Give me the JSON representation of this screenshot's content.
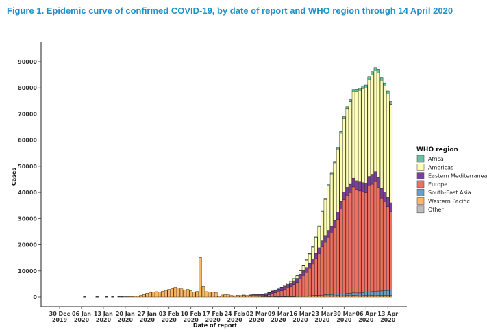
{
  "figure": {
    "title": "Figure 1. Epidemic curve of confirmed COVID-19, by date of report and WHO region through 14 April 2020"
  },
  "chart_data": {
    "type": "bar",
    "stacked": true,
    "xlabel": "Date of report",
    "ylabel": "Cases",
    "ylim": [
      0,
      95000
    ],
    "yticks": [
      0,
      10000,
      20000,
      30000,
      40000,
      50000,
      60000,
      70000,
      80000,
      90000
    ],
    "xticks": [
      {
        "line1": "30 Dec",
        "line2": "2019",
        "day": 0
      },
      {
        "line1": "06 Jan",
        "line2": "2020",
        "day": 7
      },
      {
        "line1": "13 Jan",
        "line2": "2020",
        "day": 14
      },
      {
        "line1": "20 Jan",
        "line2": "2020",
        "day": 21
      },
      {
        "line1": "27 Jan",
        "line2": "2020",
        "day": 28
      },
      {
        "line1": "03 Feb",
        "line2": "2020",
        "day": 35
      },
      {
        "line1": "10 Feb",
        "line2": "2020",
        "day": 42
      },
      {
        "line1": "17 Feb",
        "line2": "2020",
        "day": 49
      },
      {
        "line1": "24 Feb",
        "line2": "2020",
        "day": 56
      },
      {
        "line1": "02 Mar",
        "line2": "2020",
        "day": 63
      },
      {
        "line1": "09 Mar",
        "line2": "2020",
        "day": 70
      },
      {
        "line1": "16 Mar",
        "line2": "2020",
        "day": 77
      },
      {
        "line1": "23 Mar",
        "line2": "2020",
        "day": 84
      },
      {
        "line1": "30 Mar",
        "line2": "2020",
        "day": 91
      },
      {
        "line1": "06 Apr",
        "line2": "2020",
        "day": 98
      },
      {
        "line1": "13 Apr",
        "line2": "2020",
        "day": 105
      }
    ],
    "x_start_date": "2019-12-30",
    "legend": {
      "title": "WHO region",
      "position": "right",
      "entries": [
        {
          "name": "Africa",
          "color": "#66c2a5"
        },
        {
          "name": "Americas",
          "color": "#ffffb3"
        },
        {
          "name": "Eastern Mediterranean",
          "color": "#7b3f99"
        },
        {
          "name": "Europe",
          "color": "#f0705f"
        },
        {
          "name": "South-East Asia",
          "color": "#6aa0c8"
        },
        {
          "name": "Western Pacific",
          "color": "#fdb863"
        },
        {
          "name": "Other",
          "color": "#bdbdbd"
        }
      ]
    },
    "region_order": [
      "Western Pacific",
      "South-East Asia",
      "Europe",
      "Eastern Mediterranean",
      "Americas",
      "Africa",
      "Other"
    ],
    "dates": [
      "2020-01-07",
      "2020-01-08",
      "2020-01-09",
      "2020-01-10",
      "2020-01-11",
      "2020-01-12",
      "2020-01-13",
      "2020-01-14",
      "2020-01-15",
      "2020-01-16",
      "2020-01-17",
      "2020-01-18",
      "2020-01-19",
      "2020-01-20",
      "2020-01-21",
      "2020-01-22",
      "2020-01-23",
      "2020-01-24",
      "2020-01-25",
      "2020-01-26",
      "2020-01-27",
      "2020-01-28",
      "2020-01-29",
      "2020-01-30",
      "2020-01-31",
      "2020-02-01",
      "2020-02-02",
      "2020-02-03",
      "2020-02-04",
      "2020-02-05",
      "2020-02-06",
      "2020-02-07",
      "2020-02-08",
      "2020-02-09",
      "2020-02-10",
      "2020-02-11",
      "2020-02-12",
      "2020-02-13",
      "2020-02-14",
      "2020-02-15",
      "2020-02-16",
      "2020-02-17",
      "2020-02-18",
      "2020-02-19",
      "2020-02-20",
      "2020-02-21",
      "2020-02-22",
      "2020-02-23",
      "2020-02-24",
      "2020-02-25",
      "2020-02-26",
      "2020-02-27",
      "2020-02-28",
      "2020-02-29",
      "2020-03-01",
      "2020-03-02",
      "2020-03-03",
      "2020-03-04",
      "2020-03-05",
      "2020-03-06",
      "2020-03-07",
      "2020-03-08",
      "2020-03-09",
      "2020-03-10",
      "2020-03-11",
      "2020-03-12",
      "2020-03-13",
      "2020-03-14",
      "2020-03-15",
      "2020-03-16",
      "2020-03-17",
      "2020-03-18",
      "2020-03-19",
      "2020-03-20",
      "2020-03-21",
      "2020-03-22",
      "2020-03-23",
      "2020-03-24",
      "2020-03-25",
      "2020-03-26",
      "2020-03-27",
      "2020-03-28",
      "2020-03-29",
      "2020-03-30",
      "2020-03-31",
      "2020-04-01",
      "2020-04-02",
      "2020-04-03",
      "2020-04-04",
      "2020-04-05",
      "2020-04-06",
      "2020-04-07",
      "2020-04-08",
      "2020-04-09",
      "2020-04-10",
      "2020-04-11",
      "2020-04-12",
      "2020-04-13",
      "2020-04-14"
    ],
    "series": [
      {
        "name": "Western Pacific",
        "values": [
          50,
          0,
          0,
          0,
          50,
          0,
          0,
          50,
          0,
          50,
          0,
          100,
          80,
          140,
          150,
          250,
          300,
          450,
          700,
          1000,
          1500,
          1800,
          2000,
          2100,
          2000,
          2300,
          2600,
          3000,
          3300,
          3800,
          3600,
          3200,
          2800,
          3000,
          2500,
          2000,
          2200,
          15100,
          4100,
          2100,
          2000,
          2000,
          1800,
          400,
          800,
          1000,
          900,
          600,
          500,
          700,
          500,
          700,
          450,
          550,
          750,
          300,
          300,
          200,
          200,
          150,
          300,
          200,
          100,
          200,
          150,
          200,
          200,
          200,
          300,
          300,
          300,
          300,
          350,
          400,
          400,
          350,
          350,
          500,
          500,
          450,
          500,
          550,
          450,
          500,
          600,
          550,
          650,
          600,
          500,
          550,
          600,
          550,
          650,
          550,
          650,
          600,
          650,
          600,
          600
        ]
      },
      {
        "name": "South-East Asia",
        "values": [
          0,
          0,
          0,
          0,
          0,
          0,
          0,
          0,
          0,
          0,
          0,
          0,
          0,
          0,
          0,
          0,
          0,
          0,
          0,
          0,
          0,
          0,
          0,
          0,
          0,
          0,
          0,
          0,
          0,
          0,
          0,
          0,
          0,
          0,
          0,
          0,
          0,
          0,
          0,
          0,
          0,
          0,
          0,
          0,
          0,
          0,
          0,
          0,
          0,
          0,
          0,
          0,
          0,
          0,
          0,
          0,
          0,
          0,
          0,
          0,
          20,
          20,
          30,
          30,
          40,
          50,
          50,
          60,
          80,
          100,
          100,
          100,
          150,
          200,
          250,
          300,
          400,
          450,
          500,
          550,
          600,
          650,
          700,
          700,
          800,
          900,
          1000,
          1000,
          1100,
          1200,
          1300,
          1400,
          1500,
          1600,
          1700,
          1800,
          1900,
          2000,
          2100
        ]
      },
      {
        "name": "Europe",
        "values": [
          0,
          0,
          0,
          0,
          0,
          0,
          0,
          0,
          0,
          0,
          0,
          0,
          0,
          0,
          0,
          0,
          0,
          0,
          0,
          0,
          0,
          0,
          0,
          0,
          0,
          0,
          0,
          0,
          0,
          0,
          0,
          0,
          0,
          0,
          0,
          0,
          0,
          0,
          0,
          0,
          0,
          0,
          0,
          0,
          0,
          0,
          0,
          0,
          0,
          0,
          0,
          0,
          0,
          0,
          50,
          100,
          150,
          200,
          400,
          700,
          1000,
          1400,
          1800,
          2200,
          2700,
          3300,
          3800,
          4500,
          5200,
          6500,
          7900,
          9000,
          10500,
          12000,
          14000,
          16000,
          18500,
          20000,
          22000,
          23500,
          25500,
          28500,
          32500,
          36000,
          37500,
          38500,
          40500,
          39500,
          39000,
          38500,
          38000,
          40500,
          41000,
          42000,
          39500,
          35500,
          34000,
          32000,
          30000
        ]
      },
      {
        "name": "Eastern Mediterranean",
        "values": [
          0,
          0,
          0,
          0,
          0,
          0,
          0,
          0,
          0,
          0,
          0,
          0,
          0,
          0,
          0,
          0,
          0,
          0,
          0,
          0,
          0,
          0,
          0,
          0,
          0,
          0,
          0,
          0,
          0,
          0,
          0,
          0,
          0,
          0,
          0,
          0,
          0,
          0,
          0,
          0,
          0,
          0,
          0,
          0,
          0,
          0,
          0,
          0,
          0,
          0,
          50,
          100,
          150,
          300,
          400,
          500,
          600,
          600,
          700,
          800,
          900,
          1000,
          1000,
          1100,
          1200,
          1300,
          1400,
          1500,
          1600,
          1700,
          1800,
          1900,
          2000,
          2000,
          2100,
          2200,
          2300,
          2400,
          2500,
          2600,
          2700,
          2800,
          2900,
          3000,
          3100,
          3200,
          3300,
          3400,
          3400,
          3500,
          3600,
          3700,
          3800,
          3800,
          3900,
          3700,
          3600,
          3500,
          3400
        ]
      },
      {
        "name": "Americas",
        "values": [
          0,
          0,
          0,
          0,
          0,
          0,
          0,
          0,
          0,
          0,
          0,
          0,
          0,
          0,
          0,
          0,
          0,
          0,
          0,
          0,
          0,
          0,
          0,
          0,
          0,
          0,
          0,
          0,
          0,
          0,
          0,
          0,
          0,
          0,
          0,
          0,
          0,
          0,
          0,
          0,
          0,
          0,
          0,
          0,
          0,
          0,
          0,
          0,
          0,
          0,
          0,
          0,
          0,
          0,
          10,
          20,
          30,
          50,
          80,
          100,
          150,
          200,
          250,
          300,
          400,
          500,
          600,
          800,
          1000,
          1500,
          2000,
          2800,
          3500,
          4500,
          6000,
          8000,
          11000,
          14000,
          17000,
          20000,
          22000,
          24000,
          26000,
          28000,
          30000,
          31500,
          33000,
          34000,
          35000,
          36000,
          36500,
          37000,
          38000,
          38500,
          40000,
          41000,
          40500,
          39500,
          37500
        ]
      },
      {
        "name": "Africa",
        "values": [
          0,
          0,
          0,
          0,
          0,
          0,
          0,
          0,
          0,
          0,
          0,
          0,
          0,
          0,
          0,
          0,
          0,
          0,
          0,
          0,
          0,
          0,
          0,
          0,
          0,
          0,
          0,
          0,
          0,
          0,
          0,
          0,
          0,
          0,
          0,
          0,
          0,
          0,
          0,
          0,
          0,
          0,
          0,
          0,
          0,
          0,
          0,
          0,
          0,
          0,
          0,
          0,
          0,
          0,
          0,
          0,
          0,
          0,
          0,
          10,
          10,
          20,
          20,
          30,
          40,
          50,
          50,
          60,
          80,
          100,
          120,
          150,
          200,
          250,
          300,
          350,
          400,
          450,
          500,
          550,
          600,
          650,
          700,
          750,
          800,
          850,
          900,
          950,
          1000,
          1050,
          1100,
          1150,
          1200,
          1250,
          1300,
          1250,
          1200,
          1150,
          1100
        ]
      },
      {
        "name": "Other",
        "values": [
          0,
          0,
          0,
          0,
          0,
          0,
          0,
          0,
          0,
          0,
          0,
          0,
          0,
          0,
          0,
          0,
          0,
          0,
          0,
          0,
          0,
          0,
          0,
          0,
          0,
          0,
          0,
          0,
          0,
          0,
          0,
          0,
          0,
          0,
          0,
          0,
          0,
          0,
          0,
          0,
          0,
          0,
          0,
          0,
          0,
          0,
          0,
          0,
          0,
          0,
          0,
          0,
          0,
          0,
          0,
          0,
          0,
          0,
          0,
          0,
          0,
          0,
          0,
          0,
          0,
          0,
          0,
          0,
          0,
          0,
          0,
          0,
          0,
          0,
          0,
          0,
          0,
          0,
          0,
          0,
          0,
          0,
          0,
          0,
          0,
          0,
          0,
          0,
          0,
          0,
          0,
          0,
          0,
          0,
          0,
          0,
          0,
          0,
          0
        ]
      }
    ]
  }
}
